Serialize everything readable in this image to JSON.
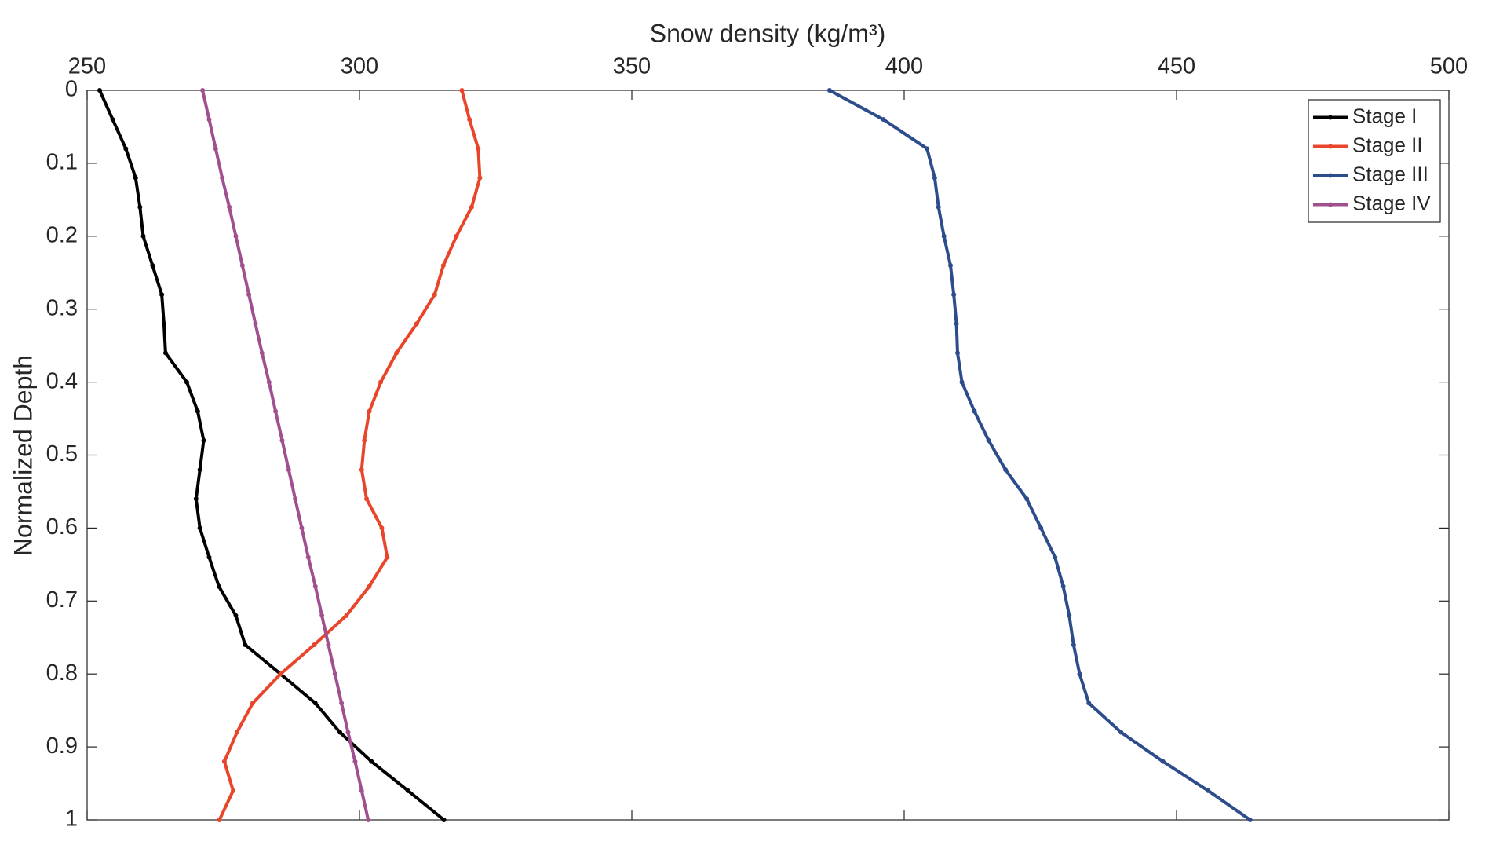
{
  "chart_data": {
    "type": "line",
    "xlabel": "Snow density (kg/m³)",
    "ylabel": "Normalized Depth",
    "xlim": [
      250,
      500
    ],
    "xticks": [
      250,
      300,
      350,
      400,
      450,
      500
    ],
    "ylim": [
      0,
      1
    ],
    "yticks": [
      0,
      0.1,
      0.2,
      0.3,
      0.4,
      0.5,
      0.6,
      0.7,
      0.8,
      0.9,
      1
    ],
    "y_reversed": true,
    "x_axis_position": "top",
    "grid": false,
    "legend": "upper right",
    "y": [
      0,
      0.04,
      0.08,
      0.12,
      0.16,
      0.2,
      0.24,
      0.28,
      0.32,
      0.36,
      0.4,
      0.44,
      0.48,
      0.52,
      0.56,
      0.6,
      0.64,
      0.68,
      0.72,
      0.76,
      0.8,
      0.84,
      0.88,
      0.92,
      0.96,
      1
    ],
    "series": [
      {
        "name": "Stage I",
        "color": "#000000",
        "values": [
          252.3,
          254.7,
          257.1,
          258.9,
          259.7,
          260.3,
          262.0,
          263.7,
          264.1,
          264.4,
          268.3,
          270.3,
          271.4,
          270.7,
          270.0,
          270.7,
          272.4,
          274.2,
          277.3,
          279.0,
          285.5,
          291.9,
          296.4,
          302.2,
          308.9,
          315.5
        ]
      },
      {
        "name": "Stage II",
        "color": "#e8452a",
        "values": [
          318.8,
          320.2,
          321.8,
          322.1,
          320.6,
          317.8,
          315.4,
          313.8,
          310.5,
          306.8,
          303.9,
          301.8,
          300.9,
          300.4,
          301.3,
          304.1,
          305.1,
          301.8,
          297.6,
          291.7,
          285.5,
          280.4,
          277.5,
          275.2,
          276.8,
          274.3
        ]
      },
      {
        "name": "Stage III",
        "color": "#2c4c8c",
        "values": [
          386.3,
          396.2,
          404.2,
          405.6,
          406.3,
          407.3,
          408.5,
          409.1,
          409.6,
          409.8,
          410.6,
          412.9,
          415.5,
          418.6,
          422.5,
          425.1,
          427.7,
          429.2,
          430.3,
          431.1,
          432.2,
          433.9,
          439.8,
          447.5,
          455.8,
          463.5
        ]
      },
      {
        "name": "Stage IV",
        "color": "#a0508f",
        "values": [
          271.2,
          272.4,
          273.6,
          274.8,
          276.1,
          277.3,
          278.5,
          279.7,
          280.9,
          282.1,
          283.4,
          284.6,
          285.8,
          287.0,
          288.2,
          289.4,
          290.6,
          291.9,
          293.1,
          294.3,
          295.5,
          296.7,
          297.9,
          299.2,
          300.4,
          301.6
        ]
      }
    ]
  }
}
